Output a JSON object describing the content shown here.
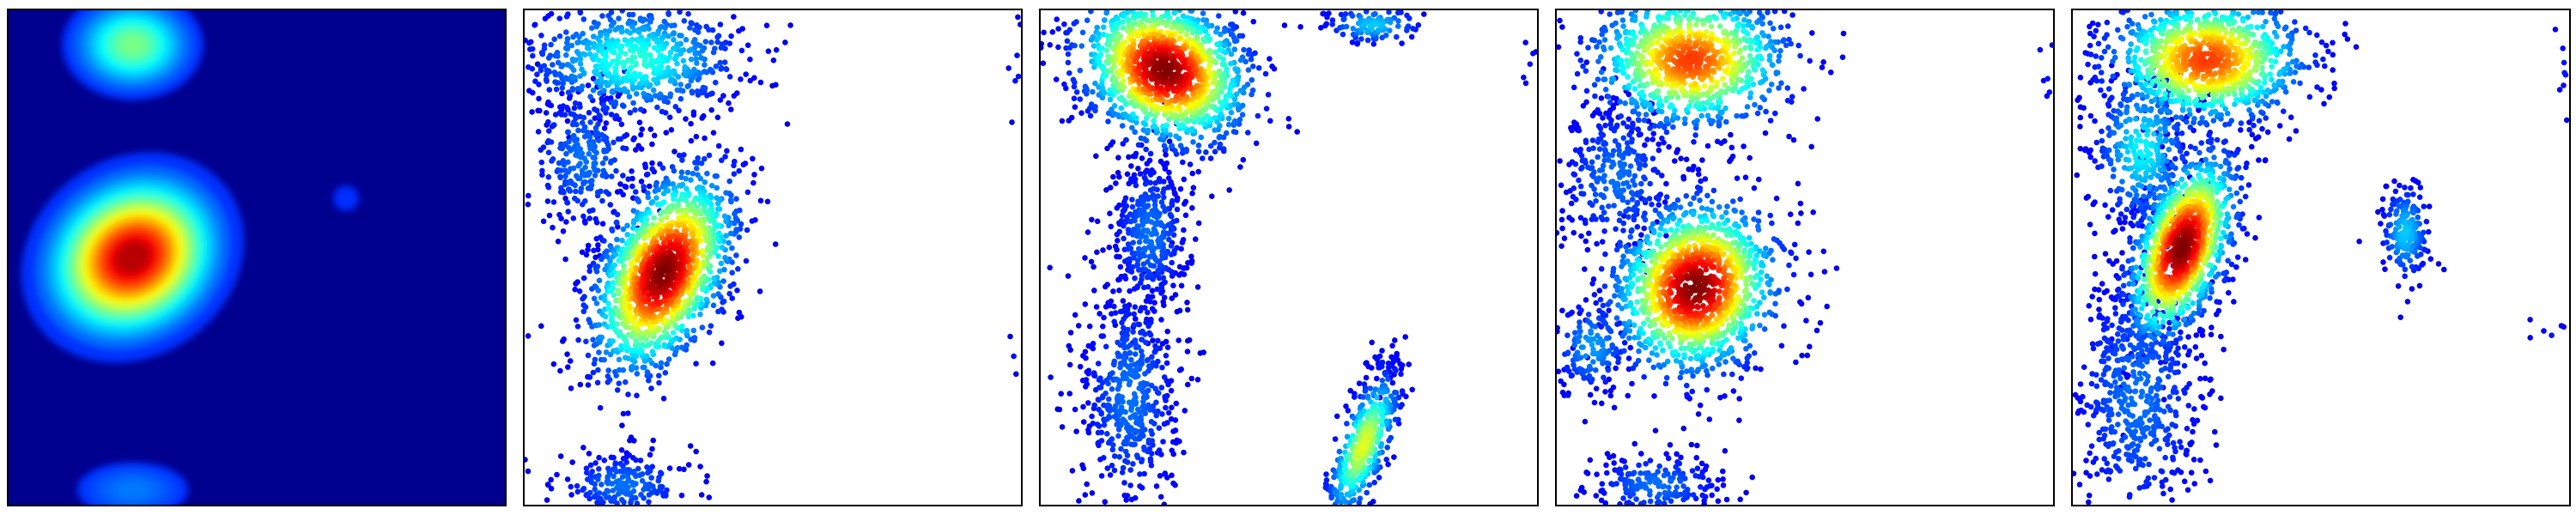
{
  "chart_data": [
    {
      "type": "heatmap",
      "xlim": [
        0,
        1
      ],
      "ylim": [
        0,
        1
      ],
      "axes_visible": false,
      "background": "#00008f",
      "colormap": "jet",
      "blobs": [
        {
          "x": 0.25,
          "y": 0.5,
          "sx": 0.1,
          "sy": 0.085,
          "rot": -35,
          "peak": 1.0
        },
        {
          "x": 0.25,
          "y": 0.93,
          "sx": 0.07,
          "sy": 0.055,
          "rot": 0,
          "peak": 0.45
        },
        {
          "x": 0.25,
          "y": 0.03,
          "sx": 0.08,
          "sy": 0.04,
          "rot": 0,
          "peak": 0.15
        },
        {
          "x": 0.68,
          "y": 0.62,
          "sx": 0.05,
          "sy": 0.05,
          "rot": 0,
          "peak": 0.06
        }
      ]
    },
    {
      "type": "scatter",
      "xlim": [
        0,
        1
      ],
      "ylim": [
        0,
        1
      ],
      "axes_visible": false,
      "colormap": "jet",
      "clusters": [
        {
          "x": 0.28,
          "y": 0.47,
          "sx": 0.06,
          "sy": 0.11,
          "rot": -25,
          "n": 1600,
          "peak": 1.0
        },
        {
          "x": 0.22,
          "y": 0.9,
          "sx": 0.11,
          "sy": 0.06,
          "rot": 0,
          "n": 700,
          "peak": 0.35
        },
        {
          "x": 0.12,
          "y": 0.7,
          "sx": 0.06,
          "sy": 0.08,
          "rot": 0,
          "n": 300,
          "peak": 0.15
        },
        {
          "x": 0.2,
          "y": 0.04,
          "sx": 0.07,
          "sy": 0.035,
          "rot": 0,
          "n": 220,
          "peak": 0.15
        },
        {
          "x": 0.99,
          "y": 0.88,
          "sx": 0.01,
          "sy": 0.04,
          "rot": 0,
          "n": 8,
          "peak": 0.05
        },
        {
          "x": 0.98,
          "y": 0.3,
          "sx": 0.01,
          "sy": 0.02,
          "rot": 0,
          "n": 4,
          "peak": 0.05
        }
      ]
    },
    {
      "type": "scatter",
      "xlim": [
        0,
        1
      ],
      "ylim": [
        0,
        1
      ],
      "axes_visible": false,
      "colormap": "jet",
      "clusters": [
        {
          "x": 0.25,
          "y": 0.88,
          "sx": 0.09,
          "sy": 0.07,
          "rot": -30,
          "n": 1500,
          "peak": 1.0
        },
        {
          "x": 0.22,
          "y": 0.55,
          "sx": 0.04,
          "sy": 0.08,
          "rot": 0,
          "n": 400,
          "peak": 0.15
        },
        {
          "x": 0.18,
          "y": 0.22,
          "sx": 0.05,
          "sy": 0.12,
          "rot": 0,
          "n": 500,
          "peak": 0.15
        },
        {
          "x": 0.65,
          "y": 0.12,
          "sx": 0.025,
          "sy": 0.08,
          "rot": -20,
          "n": 450,
          "peak": 0.55
        },
        {
          "x": 0.67,
          "y": 0.97,
          "sx": 0.05,
          "sy": 0.02,
          "rot": 0,
          "n": 120,
          "peak": 0.25
        },
        {
          "x": 0.69,
          "y": 0.28,
          "sx": 0.02,
          "sy": 0.03,
          "rot": 0,
          "n": 40,
          "peak": 0.05
        },
        {
          "x": 0.99,
          "y": 0.88,
          "sx": 0.01,
          "sy": 0.04,
          "rot": 0,
          "n": 8,
          "peak": 0.05
        }
      ]
    },
    {
      "type": "scatter",
      "xlim": [
        0,
        1
      ],
      "ylim": [
        0,
        1
      ],
      "axes_visible": false,
      "colormap": "jet",
      "clusters": [
        {
          "x": 0.28,
          "y": 0.44,
          "sx": 0.08,
          "sy": 0.09,
          "rot": -30,
          "n": 1400,
          "peak": 1.0
        },
        {
          "x": 0.27,
          "y": 0.9,
          "sx": 0.1,
          "sy": 0.07,
          "rot": 0,
          "n": 1000,
          "peak": 0.8
        },
        {
          "x": 0.12,
          "y": 0.66,
          "sx": 0.06,
          "sy": 0.08,
          "rot": 0,
          "n": 300,
          "peak": 0.15
        },
        {
          "x": 0.07,
          "y": 0.32,
          "sx": 0.04,
          "sy": 0.05,
          "rot": 0,
          "n": 150,
          "peak": 0.2
        },
        {
          "x": 0.2,
          "y": 0.04,
          "sx": 0.07,
          "sy": 0.035,
          "rot": 0,
          "n": 220,
          "peak": 0.15
        },
        {
          "x": 0.99,
          "y": 0.86,
          "sx": 0.01,
          "sy": 0.04,
          "rot": 0,
          "n": 8,
          "peak": 0.05
        }
      ]
    },
    {
      "type": "scatter",
      "xlim": [
        0,
        1
      ],
      "ylim": [
        0,
        1
      ],
      "axes_visible": false,
      "colormap": "jet",
      "clusters": [
        {
          "x": 0.22,
          "y": 0.52,
          "sx": 0.045,
          "sy": 0.1,
          "rot": -20,
          "n": 1300,
          "peak": 1.0
        },
        {
          "x": 0.27,
          "y": 0.9,
          "sx": 0.1,
          "sy": 0.065,
          "rot": 0,
          "n": 1100,
          "peak": 0.8
        },
        {
          "x": 0.14,
          "y": 0.72,
          "sx": 0.05,
          "sy": 0.08,
          "rot": 0,
          "n": 350,
          "peak": 0.3
        },
        {
          "x": 0.13,
          "y": 0.22,
          "sx": 0.07,
          "sy": 0.14,
          "rot": 0,
          "n": 600,
          "peak": 0.15
        },
        {
          "x": 0.67,
          "y": 0.55,
          "sx": 0.025,
          "sy": 0.05,
          "rot": 0,
          "n": 200,
          "peak": 0.25
        },
        {
          "x": 0.99,
          "y": 0.88,
          "sx": 0.01,
          "sy": 0.05,
          "rot": 0,
          "n": 10,
          "peak": 0.05
        },
        {
          "x": 0.97,
          "y": 0.35,
          "sx": 0.02,
          "sy": 0.02,
          "rot": 0,
          "n": 6,
          "peak": 0.05
        }
      ]
    }
  ]
}
